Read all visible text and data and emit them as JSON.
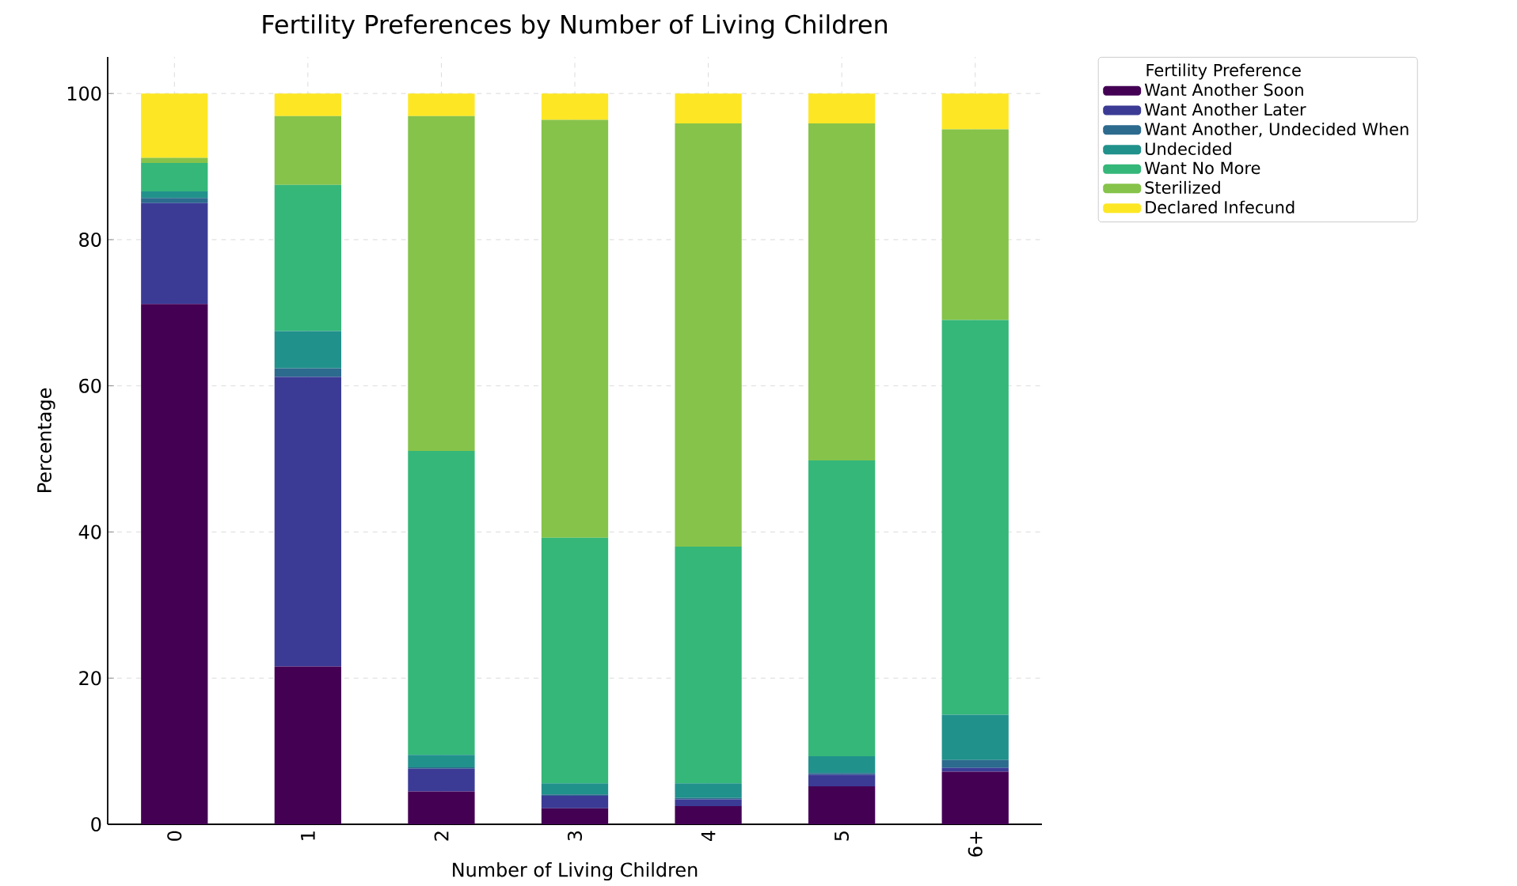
{
  "chart_data": {
    "type": "bar",
    "stacked": true,
    "title": "Fertility Preferences by Number of Living Children",
    "xlabel": "Number of Living Children",
    "ylabel": "Percentage",
    "legend_title": "Fertility Preference",
    "categories": [
      "0",
      "1",
      "2",
      "3",
      "4",
      "5",
      "6+"
    ],
    "series": [
      {
        "name": "Want Another Soon",
        "color": "#440154",
        "values": [
          71.2,
          21.6,
          4.5,
          2.2,
          2.5,
          5.2,
          7.2
        ]
      },
      {
        "name": "Want Another Later",
        "color": "#3b3b96",
        "values": [
          13.8,
          39.6,
          3.1,
          1.7,
          0.9,
          1.6,
          0.5
        ]
      },
      {
        "name": "Want Another, Undecided When",
        "color": "#2c6a8e",
        "values": [
          0.7,
          1.2,
          0.2,
          0.2,
          0.2,
          0.2,
          1.1
        ]
      },
      {
        "name": "Undecided",
        "color": "#21918c",
        "values": [
          0.9,
          5.1,
          1.7,
          1.5,
          2.0,
          2.3,
          6.2
        ]
      },
      {
        "name": "Want No More",
        "color": "#35b779",
        "values": [
          3.9,
          20.0,
          41.6,
          33.6,
          32.4,
          40.5,
          54.0
        ]
      },
      {
        "name": "Sterilized",
        "color": "#86c34a",
        "values": [
          0.7,
          9.4,
          45.8,
          57.2,
          57.9,
          46.1,
          26.1
        ]
      },
      {
        "name": "Declared Infecund",
        "color": "#fde725",
        "values": [
          8.8,
          3.1,
          3.1,
          3.6,
          4.1,
          4.1,
          4.9
        ]
      }
    ],
    "ylim": [
      0,
      105
    ],
    "yticks": [
      0,
      20,
      40,
      60,
      80,
      100
    ],
    "grid": true,
    "legend": "top right"
  }
}
